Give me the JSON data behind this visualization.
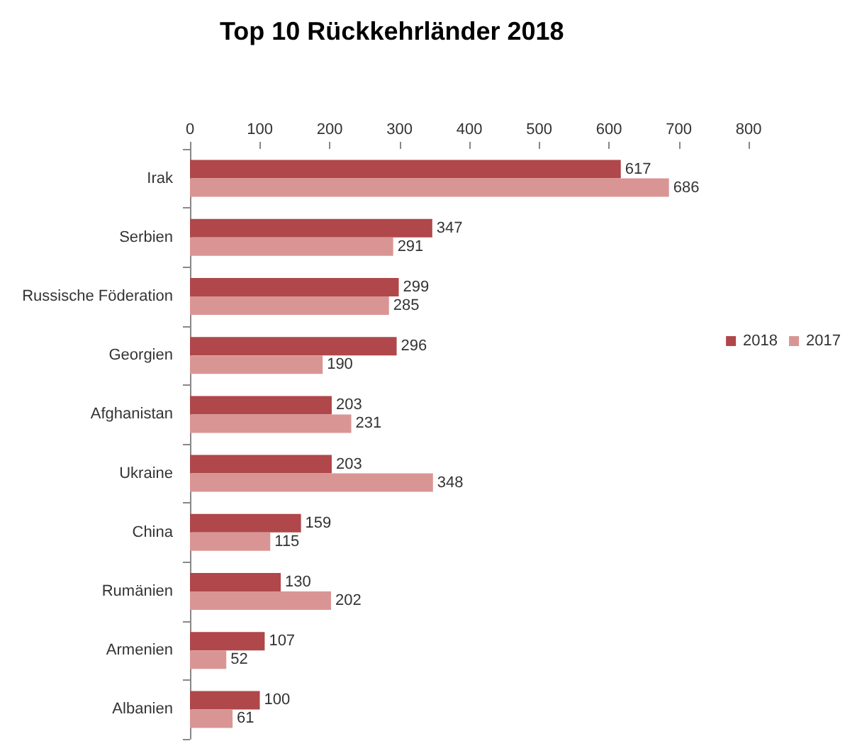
{
  "chart_data": {
    "type": "bar",
    "orientation": "horizontal",
    "title": "Top 10 Rückkehrländer 2018",
    "categories": [
      "Irak",
      "Serbien",
      "Russische Föderation",
      "Georgien",
      "Afghanistan",
      "Ukraine",
      "China",
      "Rumänien",
      "Armenien",
      "Albanien"
    ],
    "series": [
      {
        "name": "2018",
        "color": "#b0474a",
        "values": [
          617,
          347,
          299,
          296,
          203,
          203,
          159,
          130,
          107,
          100
        ]
      },
      {
        "name": "2017",
        "color": "#d99594",
        "values": [
          686,
          291,
          285,
          190,
          231,
          348,
          115,
          202,
          52,
          61
        ]
      }
    ],
    "xlim": [
      0,
      800
    ],
    "xticks": [
      0,
      100,
      200,
      300,
      400,
      500,
      600,
      700,
      800
    ],
    "data_labels": true,
    "grid": false,
    "legend": "right"
  }
}
